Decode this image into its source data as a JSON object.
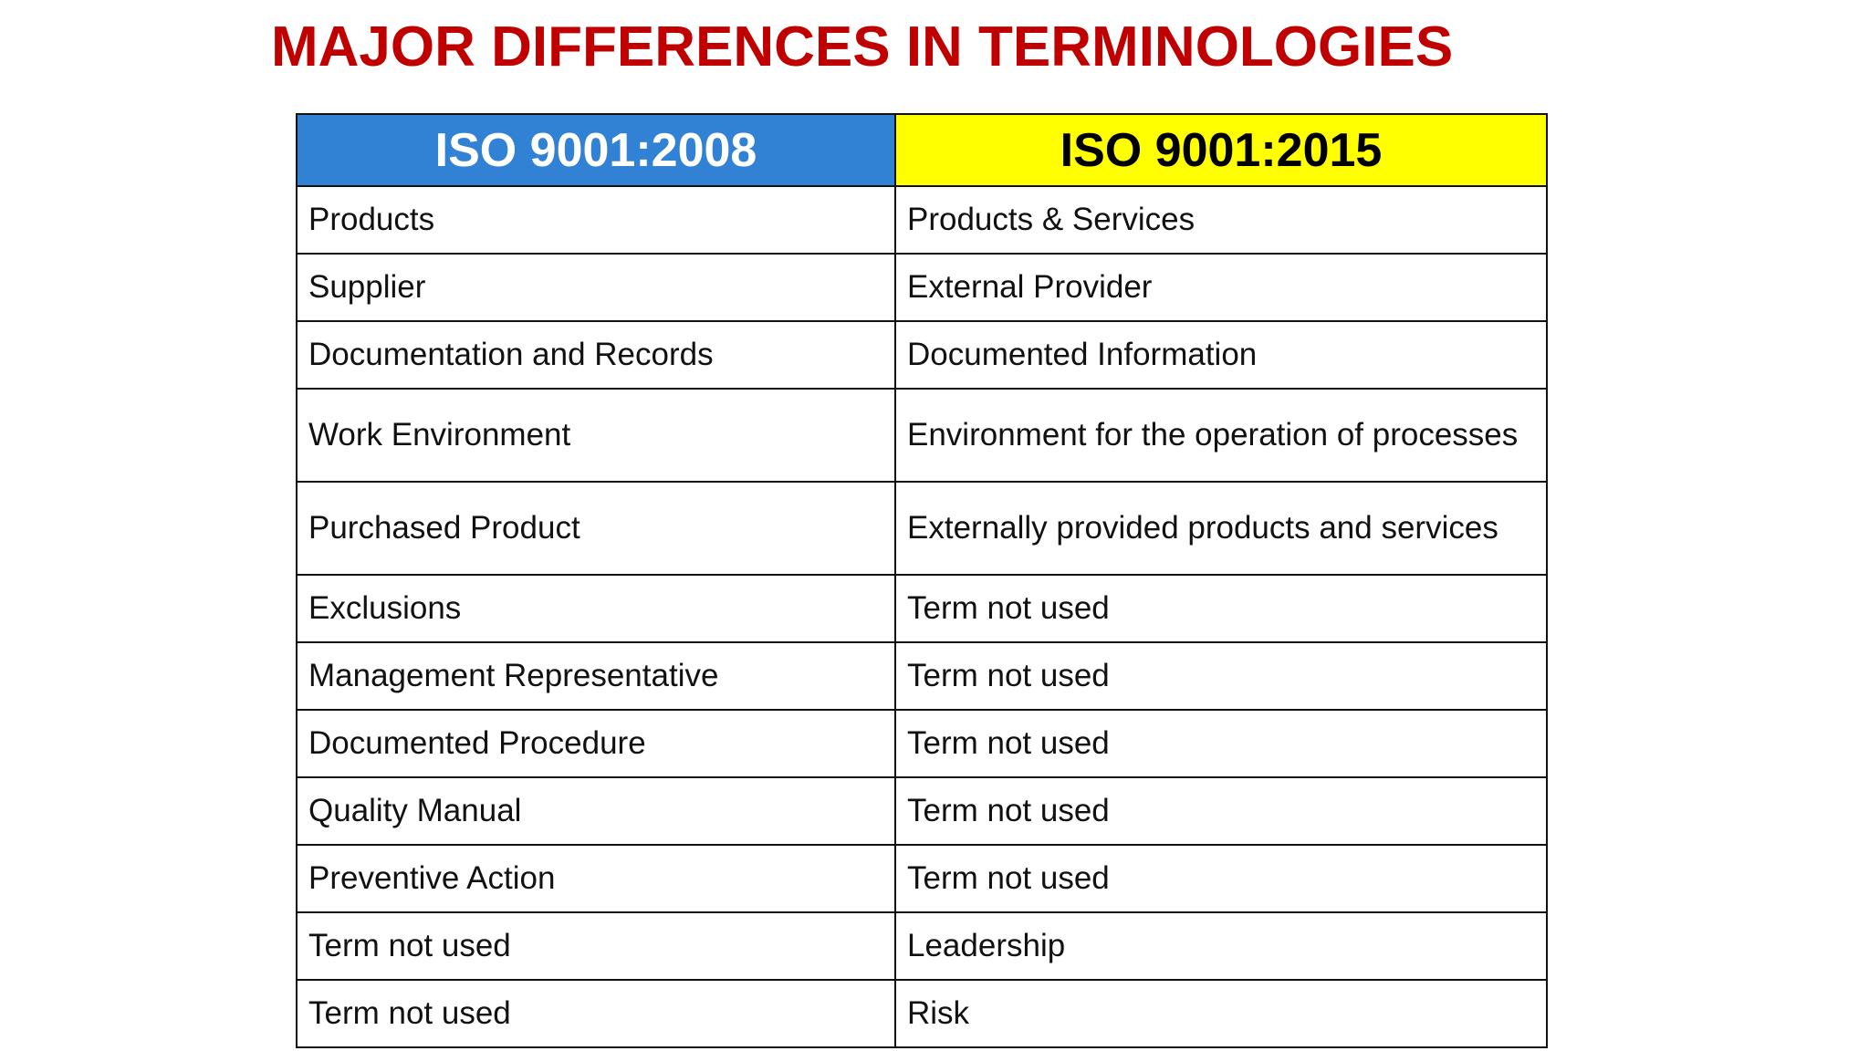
{
  "slide": {
    "title": "MAJOR DIFFERENCES IN TERMINOLOGIES",
    "title_color": "#c00000"
  },
  "table": {
    "headers": {
      "old": "ISO 9001:2008",
      "new": "ISO 9001:2015",
      "old_bg": "#3181d4",
      "new_bg": "#ffff00"
    },
    "rows": [
      {
        "old": "Products",
        "new": "Products & Services"
      },
      {
        "old": "Supplier",
        "new": "External Provider"
      },
      {
        "old": "Documentation and Records",
        "new": "Documented Information"
      },
      {
        "old": "Work Environment",
        "new": "Environment for the operation of processes"
      },
      {
        "old": "Purchased Product",
        "new": "Externally provided products and services"
      },
      {
        "old": "Exclusions",
        "new": "Term not used"
      },
      {
        "old": "Management Representative",
        "new": "Term not used"
      },
      {
        "old": "Documented Procedure",
        "new": "Term not used"
      },
      {
        "old": "Quality Manual",
        "new": "Term not used"
      },
      {
        "old": "Preventive Action",
        "new": "Term not used"
      },
      {
        "old": "Term not used",
        "new": "Leadership"
      },
      {
        "old": "Term not used",
        "new": "Risk"
      }
    ]
  }
}
